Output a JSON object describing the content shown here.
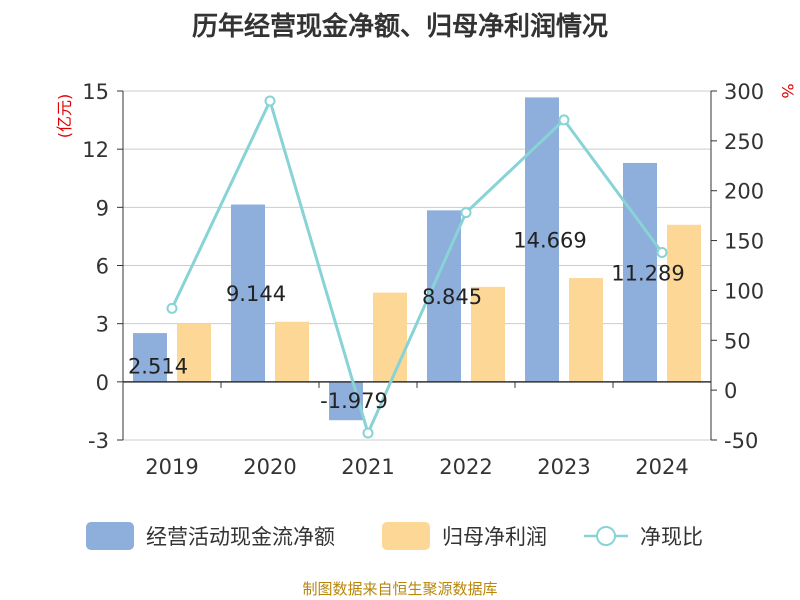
{
  "chart_data": {
    "type": "bar",
    "title": "历年经营现金净额、归母净利润情况",
    "categories": [
      "2019",
      "2020",
      "2021",
      "2022",
      "2023",
      "2024"
    ],
    "series": [
      {
        "name": "经营活动现金流净额",
        "kind": "bar",
        "axis": "left",
        "color": "#8eaedb",
        "values": [
          2.514,
          9.144,
          -1.979,
          8.845,
          14.669,
          11.289
        ]
      },
      {
        "name": "归母净利润",
        "kind": "bar",
        "axis": "left",
        "color": "#fdd796",
        "values": [
          3.0,
          3.1,
          4.6,
          4.9,
          5.35,
          8.1
        ]
      },
      {
        "name": "净现比",
        "kind": "line",
        "axis": "right",
        "color": "#88d3d6",
        "values": [
          82,
          290,
          -43,
          178,
          271,
          138
        ]
      }
    ],
    "data_labels": [
      "2.514",
      "9.144",
      "-1.979",
      "8.845",
      "14.669",
      "11.289"
    ],
    "y_left": {
      "label": "(亿元)",
      "min": -3,
      "max": 15,
      "ticks": [
        "-3",
        "0",
        "3",
        "6",
        "9",
        "12",
        "15"
      ]
    },
    "y_right": {
      "label": "%",
      "min": -50,
      "max": 300,
      "ticks": [
        "-50",
        "0",
        "50",
        "100",
        "150",
        "200",
        "250",
        "300"
      ]
    },
    "grid": true,
    "legend_position": "bottom"
  },
  "source": "制图数据来自恒生聚源数据库"
}
